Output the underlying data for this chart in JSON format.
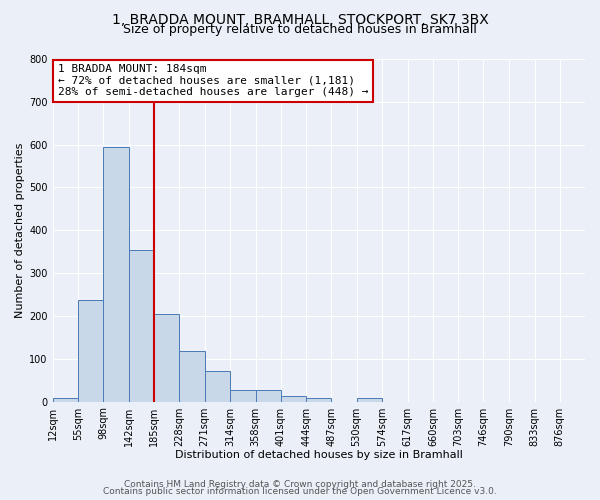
{
  "title1": "1, BRADDA MOUNT, BRAMHALL, STOCKPORT, SK7 3BX",
  "title2": "Size of property relative to detached houses in Bramhall",
  "xlabel": "Distribution of detached houses by size in Bramhall",
  "ylabel": "Number of detached properties",
  "bin_labels": [
    "12sqm",
    "55sqm",
    "98sqm",
    "142sqm",
    "185sqm",
    "228sqm",
    "271sqm",
    "314sqm",
    "358sqm",
    "401sqm",
    "444sqm",
    "487sqm",
    "530sqm",
    "574sqm",
    "617sqm",
    "660sqm",
    "703sqm",
    "746sqm",
    "790sqm",
    "833sqm",
    "876sqm"
  ],
  "bin_edges": [
    12,
    55,
    98,
    142,
    185,
    228,
    271,
    314,
    358,
    401,
    444,
    487,
    530,
    574,
    617,
    660,
    703,
    746,
    790,
    833,
    876
  ],
  "bar_heights": [
    8,
    238,
    595,
    355,
    205,
    117,
    72,
    27,
    27,
    13,
    9,
    0,
    9,
    0,
    0,
    0,
    0,
    0,
    0,
    0,
    0
  ],
  "bar_color": "#c8d8e8",
  "bar_edge_color": "#4a7ab5",
  "vline_x": 184,
  "vline_color": "#cc0000",
  "annotation_line1": "1 BRADDA MOUNT: 184sqm",
  "annotation_line2": "← 72% of detached houses are smaller (1,181)",
  "annotation_line3": "28% of semi-detached houses are larger (448) →",
  "annotation_box_color": "#ffffff",
  "annotation_box_edge_color": "#cc0000",
  "ylim": [
    0,
    800
  ],
  "yticks": [
    0,
    100,
    200,
    300,
    400,
    500,
    600,
    700,
    800
  ],
  "bg_color": "#eaeff8",
  "grid_color": "#ffffff",
  "footer1": "Contains HM Land Registry data © Crown copyright and database right 2025.",
  "footer2": "Contains public sector information licensed under the Open Government Licence v3.0.",
  "title1_fontsize": 10,
  "title2_fontsize": 9,
  "tick_fontsize": 7,
  "axis_label_fontsize": 8,
  "annotation_fontsize": 8,
  "footer_fontsize": 6.5
}
